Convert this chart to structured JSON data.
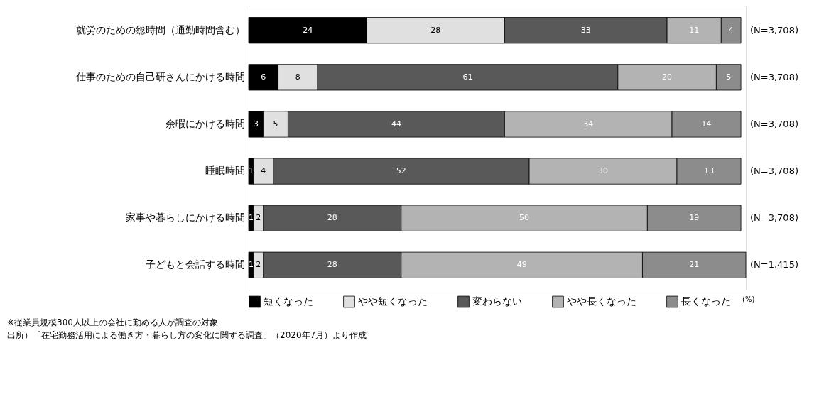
{
  "chart_data": {
    "type": "bar",
    "orientation": "horizontal",
    "stacked": true,
    "data_labels": true,
    "legend": "bottom",
    "tick_labels": "y",
    "xlim": [
      0,
      101
    ],
    "categories": [
      "就労のための総時間（通勤時間含む）",
      "仕事のための自己研さんにかける時間",
      "余暇にかける時間",
      "睡眠時間",
      "家事や暮らしにかける時間",
      "子どもと会話する時間"
    ],
    "series": [
      {
        "name": "短くなった",
        "color": "#000000",
        "values": [
          24,
          6,
          3,
          1,
          1,
          1
        ]
      },
      {
        "name": "やや短くなった",
        "color": "#e0e0e0",
        "values": [
          28,
          8,
          5,
          4,
          2,
          2
        ]
      },
      {
        "name": "変わらない",
        "color": "#595959",
        "values": [
          33,
          61,
          44,
          52,
          28,
          28
        ]
      },
      {
        "name": "やや長くなった",
        "color": "#b3b3b3",
        "values": [
          11,
          20,
          34,
          30,
          50,
          49
        ]
      },
      {
        "name": "長くなった",
        "color": "#8c8c8c",
        "values": [
          4,
          5,
          14,
          13,
          19,
          21
        ]
      }
    ],
    "annotations": [
      "(N=3,708)",
      "(N=3,708)",
      "(N=3,708)",
      "(N=3,708)",
      "(N=3,708)",
      "(N=1,415)",
      "(%)",
      "※従業員規模300人以上の会社に勤める人が調査の対象",
      "出所）「在宅勤務活用による働き方・暮らし方の変化に関する調査」（2020年7月）より作成"
    ]
  }
}
